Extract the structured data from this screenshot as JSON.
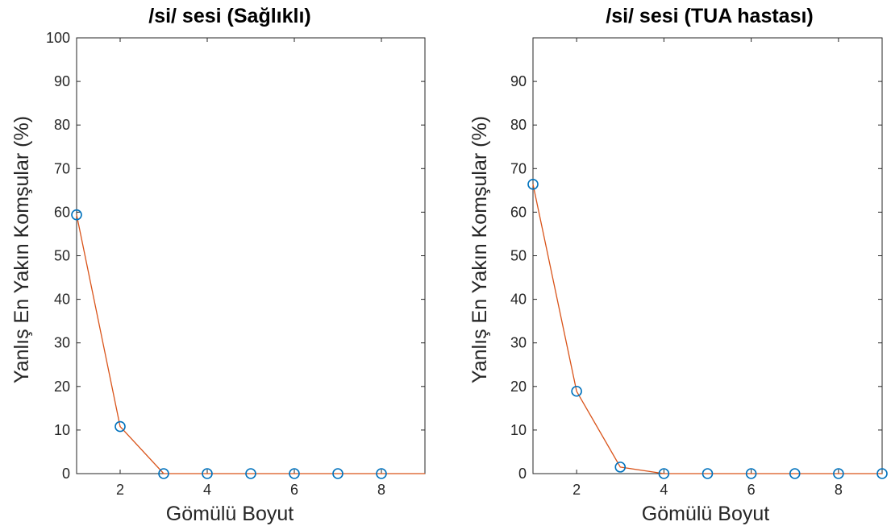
{
  "chart_data": [
    {
      "type": "line",
      "title": "/si/ sesi (Sağlıklı)",
      "xlabel": "Gömülü Boyut",
      "ylabel": "Yanlış En Yakın Komşular (%)",
      "xlim": [
        1,
        9
      ],
      "ylim": [
        0,
        100
      ],
      "xticks": [
        2,
        4,
        6,
        8
      ],
      "yticks": [
        0,
        10,
        20,
        30,
        40,
        50,
        60,
        70,
        80,
        90,
        100
      ],
      "grid": false,
      "series": [
        {
          "x": [
            1,
            2,
            3,
            4,
            5,
            6,
            7,
            8,
            9
          ],
          "values": [
            59.4,
            10.8,
            0,
            0,
            0,
            0,
            0,
            0,
            0
          ],
          "marker_x": [
            1,
            2,
            3,
            4,
            5,
            6,
            7,
            8
          ],
          "line_color": "#D95319",
          "marker_color": "#0072BD"
        }
      ]
    },
    {
      "type": "line",
      "title": "/si/ sesi (TUA hastası)",
      "xlabel": "Gömülü Boyut",
      "ylabel": "Yanlış En Yakın Komşular (%)",
      "xlim": [
        1,
        9
      ],
      "ylim": [
        0,
        100
      ],
      "xticks": [
        2,
        4,
        6,
        8
      ],
      "yticks": [
        0,
        10,
        20,
        30,
        40,
        50,
        60,
        70,
        80,
        90
      ],
      "grid": false,
      "series": [
        {
          "x": [
            1,
            2,
            3,
            4,
            5,
            6,
            7,
            8,
            9
          ],
          "values": [
            66.4,
            18.9,
            1.5,
            0,
            0,
            0,
            0,
            0,
            0
          ],
          "marker_x": [
            1,
            2,
            3,
            4,
            5,
            6,
            7,
            8,
            9
          ],
          "line_color": "#D95319",
          "marker_color": "#0072BD"
        }
      ]
    }
  ]
}
